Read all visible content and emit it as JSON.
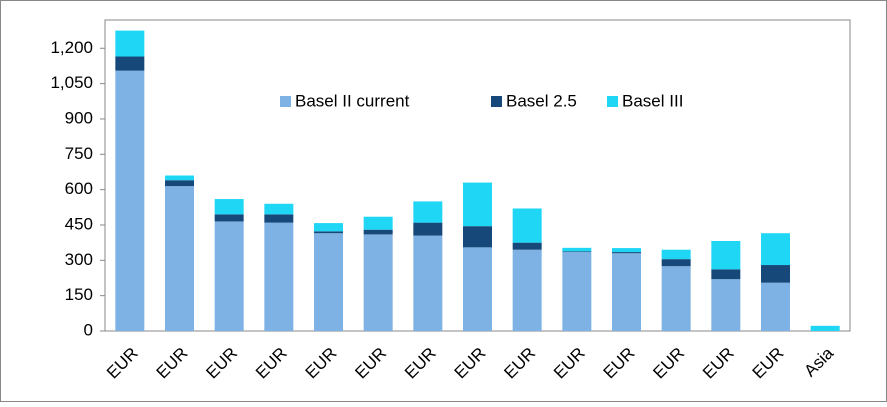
{
  "chart_data": {
    "type": "bar",
    "stacked": true,
    "categories": [
      "EUR",
      "EUR",
      "EUR",
      "EUR",
      "EUR",
      "EUR",
      "EUR",
      "EUR",
      "EUR",
      "EUR",
      "EUR",
      "EUR",
      "EUR",
      "EUR",
      "Asia"
    ],
    "series": [
      {
        "name": "Basel II current",
        "color": "#7eb2e4",
        "values": [
          1105,
          615,
          465,
          460,
          415,
          410,
          405,
          355,
          345,
          335,
          330,
          275,
          220,
          205,
          0
        ]
      },
      {
        "name": "Basel 2.5",
        "color": "#17487a",
        "values": [
          60,
          25,
          30,
          35,
          8,
          20,
          55,
          90,
          30,
          3,
          5,
          30,
          42,
          75,
          0
        ]
      },
      {
        "name": "Basel III",
        "color": "#1fd6f5",
        "values": [
          110,
          20,
          65,
          45,
          35,
          55,
          90,
          185,
          145,
          15,
          17,
          40,
          120,
          135,
          22
        ]
      }
    ],
    "ylim": [
      0,
      1320
    ],
    "yticks": [
      0,
      150,
      300,
      450,
      600,
      750,
      900,
      {
        "value": 1050,
        "label": "1,050"
      },
      {
        "value": 1200,
        "label": "1,200"
      }
    ]
  }
}
